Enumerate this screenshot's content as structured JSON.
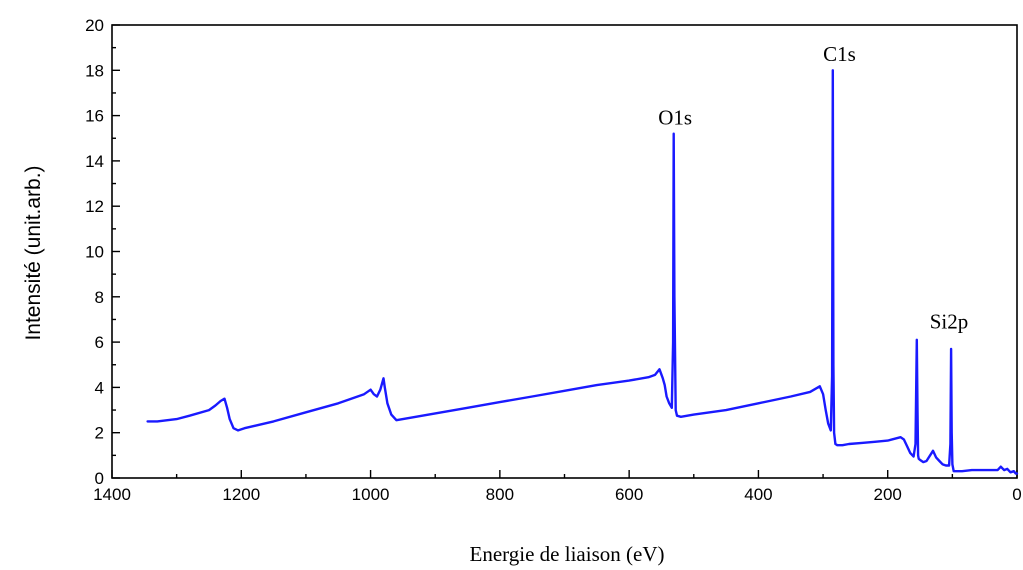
{
  "chart_data": {
    "type": "line",
    "title": "",
    "xlabel": "Energie de liaison (eV)",
    "ylabel": "Intensité (unit.arb.)",
    "xlim": [
      1400,
      0
    ],
    "ylim": [
      0,
      20
    ],
    "x_reversed": true,
    "x_ticks": [
      1400,
      1200,
      1000,
      800,
      600,
      400,
      200,
      0
    ],
    "y_ticks": [
      0,
      2,
      4,
      6,
      8,
      10,
      12,
      14,
      16,
      18,
      20
    ],
    "grid": false,
    "legend": "none",
    "line_color": "#1a1aff",
    "series": [
      {
        "x": [
          1345,
          1330,
          1300,
          1280,
          1250,
          1240,
          1232,
          1226,
          1222,
          1218,
          1212,
          1205,
          1195,
          1150,
          1100,
          1050,
          1010,
          1000,
          995,
          990,
          985,
          980,
          978,
          974,
          968,
          960,
          950,
          900,
          850,
          800,
          750,
          700,
          650,
          600,
          570,
          560,
          553,
          548,
          545,
          542,
          538,
          534,
          532,
          531,
          530,
          528,
          526,
          520,
          500,
          450,
          400,
          350,
          320,
          305,
          300,
          296,
          292,
          288,
          286,
          285,
          284,
          283,
          281,
          278,
          270,
          260,
          240,
          220,
          200,
          180,
          175,
          170,
          165,
          160,
          157,
          155,
          154,
          153,
          152,
          150,
          145,
          140,
          130,
          125,
          120,
          115,
          110,
          105,
          103,
          102,
          101,
          100,
          98,
          95,
          85,
          70,
          50,
          30,
          25,
          20,
          15,
          10,
          5,
          2,
          0
        ],
        "y": [
          2.5,
          2.5,
          2.6,
          2.75,
          3.0,
          3.2,
          3.4,
          3.5,
          3.1,
          2.6,
          2.2,
          2.1,
          2.2,
          2.5,
          2.9,
          3.3,
          3.7,
          3.9,
          3.7,
          3.6,
          3.9,
          4.4,
          4.0,
          3.3,
          2.8,
          2.55,
          2.6,
          2.85,
          3.1,
          3.35,
          3.6,
          3.85,
          4.1,
          4.3,
          4.45,
          4.55,
          4.8,
          4.4,
          4.1,
          3.6,
          3.3,
          3.1,
          6.0,
          15.2,
          8.0,
          3.0,
          2.75,
          2.7,
          2.8,
          3.0,
          3.3,
          3.6,
          3.8,
          4.05,
          3.7,
          3.0,
          2.4,
          2.1,
          4.5,
          18.0,
          5.0,
          2.0,
          1.5,
          1.45,
          1.45,
          1.5,
          1.55,
          1.6,
          1.65,
          1.8,
          1.7,
          1.4,
          1.1,
          0.95,
          1.5,
          6.1,
          3.0,
          1.0,
          0.85,
          0.8,
          0.7,
          0.75,
          1.2,
          0.9,
          0.75,
          0.6,
          0.55,
          0.55,
          1.5,
          5.7,
          2.0,
          0.6,
          0.3,
          0.3,
          0.3,
          0.35,
          0.35,
          0.35,
          0.5,
          0.35,
          0.4,
          0.25,
          0.3,
          0.2,
          0.2
        ]
      }
    ],
    "annotations": [
      {
        "text": "O1s",
        "x": 555,
        "y": 15.6
      },
      {
        "text": "C1s",
        "x": 300,
        "y": 18.4
      },
      {
        "text": "Si2p",
        "x": 135,
        "y": 6.6
      }
    ]
  }
}
